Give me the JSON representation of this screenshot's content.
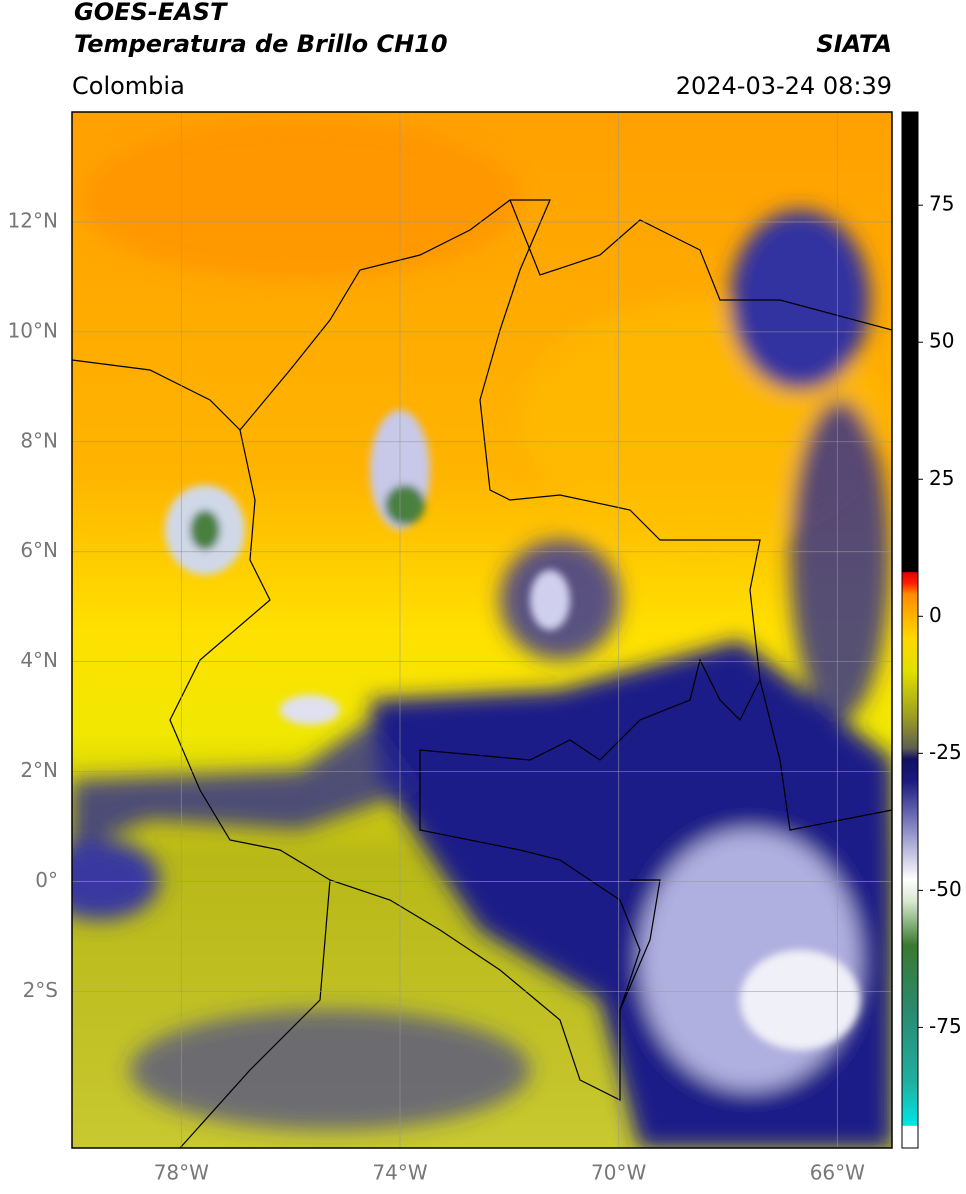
{
  "header": {
    "title": "GOES-EAST",
    "subtitle": "Temperatura de Brillo CH10",
    "source": "SIATA",
    "region": "Colombia",
    "timestamp": "2024-03-24 08:39"
  },
  "map": {
    "lonlim": [
      -80,
      -65
    ],
    "latlim": [
      -4.85,
      14
    ],
    "lonticks": [
      {
        "value": -78,
        "label": "78°W"
      },
      {
        "value": -74,
        "label": "74°W"
      },
      {
        "value": -70,
        "label": "70°W"
      },
      {
        "value": -66,
        "label": "66°W"
      }
    ],
    "latticks": [
      {
        "value": 12,
        "label": "12°N"
      },
      {
        "value": 10,
        "label": "10°N"
      },
      {
        "value": 8,
        "label": "8°N"
      },
      {
        "value": 6,
        "label": "6°N"
      },
      {
        "value": 4,
        "label": "4°N"
      },
      {
        "value": 2,
        "label": "2°N"
      },
      {
        "value": 0,
        "label": "0°"
      },
      {
        "value": -2,
        "label": "2°S"
      }
    ],
    "grid": true
  },
  "colorbar": {
    "lim": [
      -97,
      92
    ],
    "ticks": [
      75,
      50,
      25,
      0,
      -25,
      -50,
      -75
    ],
    "stops": [
      {
        "value": -97,
        "color": "#ffffff"
      },
      {
        "value": -93,
        "color": "#ffffff"
      },
      {
        "value": -92.9,
        "color": "#00e5e5"
      },
      {
        "value": -85,
        "color": "#20b0a0"
      },
      {
        "value": -72,
        "color": "#2a8a70"
      },
      {
        "value": -60,
        "color": "#3a7a30"
      },
      {
        "value": -52,
        "color": "#d8e8d0"
      },
      {
        "value": -48,
        "color": "#ffffff"
      },
      {
        "value": -38,
        "color": "#8080c0"
      },
      {
        "value": -30,
        "color": "#1a1a80"
      },
      {
        "value": -26,
        "color": "#101060"
      },
      {
        "value": -24,
        "color": "#606050"
      },
      {
        "value": -18,
        "color": "#a0a020"
      },
      {
        "value": -10,
        "color": "#e0e000"
      },
      {
        "value": -4,
        "color": "#ffd800"
      },
      {
        "value": 4,
        "color": "#ff8c00"
      },
      {
        "value": 6,
        "color": "#ff2000"
      },
      {
        "value": 8,
        "color": "#e00000"
      },
      {
        "value": 8.1,
        "color": "#000000"
      },
      {
        "value": 92,
        "color": "#000000"
      }
    ]
  }
}
